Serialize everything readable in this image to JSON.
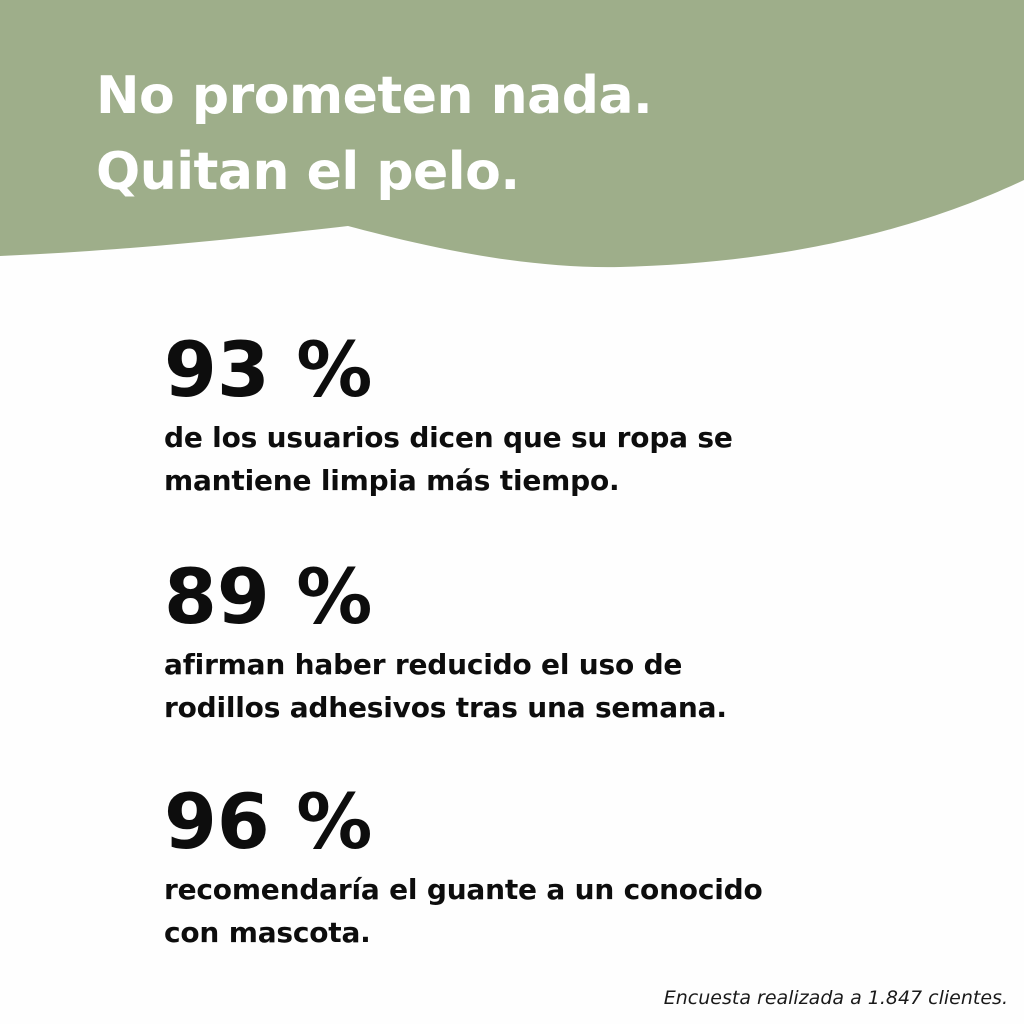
{
  "colors": {
    "banner": "#9eae8a",
    "headline": "#ffffff",
    "text": "#0d0d0d",
    "background": "#fefefe"
  },
  "header": {
    "headline_lines": [
      "No prometen nada.",
      "Quitan el pelo."
    ]
  },
  "stats": [
    {
      "value": "93 %",
      "description_lines": [
        "de los usuarios dicen que su ropa se",
        "mantiene limpia más tiempo."
      ]
    },
    {
      "value": "89 %",
      "description_lines": [
        "afirman haber reducido el uso de",
        "rodillos adhesivos tras una semana."
      ]
    },
    {
      "value": "96 %",
      "description_lines": [
        "recomendaría el guante a un conocido",
        "con mascota."
      ]
    }
  ],
  "footnote": "Encuesta realizada a 1.847 clientes."
}
